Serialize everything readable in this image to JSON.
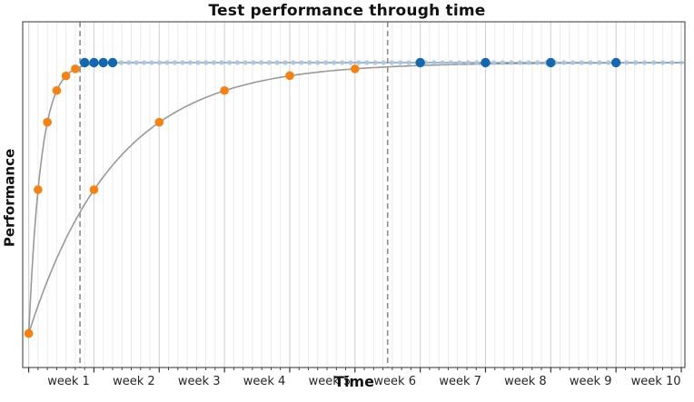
{
  "chart_data": {
    "type": "line",
    "title": "Test performance through time",
    "xlabel": "Time",
    "ylabel": "Performance",
    "x_unit": "weeks",
    "x_tick_labels": [
      "week 1",
      "week 2",
      "week 3",
      "week 4",
      "week 5",
      "week 6",
      "week 7",
      "week 8",
      "week 9",
      "week 10"
    ],
    "x_range_weeks": [
      -0.09,
      10.06
    ],
    "y_axis": {
      "tick_labels_shown": false,
      "start_value": 0.0,
      "asymptote_value": 1.0
    },
    "grid": {
      "minor_divisions_per_week": 7,
      "weeks_shown": 10,
      "minor_grid": true,
      "major_grid": true
    },
    "curves": [
      {
        "name": "fast-learner-curve",
        "model": "perf = 1 - exp(-t/tau)",
        "tau_weeks": 0.189
      },
      {
        "name": "slow-learner-curve",
        "model": "perf = 1 - exp(-t/tau)",
        "tau_weeks": 1.324
      }
    ],
    "series": [
      {
        "name": "fast-learning-tests",
        "marker": "orange-dot",
        "curve": 0,
        "x_weeks": [
          0,
          0.143,
          0.286,
          0.429,
          0.571,
          0.714
        ],
        "perf": [
          0,
          0.531,
          0.78,
          0.897,
          0.951,
          0.977
        ]
      },
      {
        "name": "slow-learning-tests",
        "marker": "orange-dot",
        "curve": 1,
        "x_weeks": [
          0,
          1,
          2,
          3,
          4,
          5
        ],
        "perf": [
          0,
          0.531,
          0.78,
          0.897,
          0.952,
          0.977
        ]
      },
      {
        "name": "fast-mastery-tests",
        "marker": "blue-dark-dot",
        "perf_const": 1.0,
        "x_weeks": [
          0.857,
          1.0,
          1.143,
          1.286
        ]
      },
      {
        "name": "slow-mastery-tests",
        "marker": "blue-dark-dot",
        "perf_const": 1.0,
        "x_weeks": [
          6,
          7,
          8,
          9
        ]
      },
      {
        "name": "scheduled-future-tests",
        "marker": "blue-light-dot",
        "perf_const": 1.0,
        "schedule": {
          "first_week": 1.418,
          "end_week": 10.1,
          "first_gap_days": 0.814,
          "last_gap_days": 0.989
        }
      }
    ],
    "criterion_vlines_weeks": [
      0.786,
      5.5
    ],
    "legend": {
      "shown": false
    },
    "colors": {
      "orange_dot": "#f8820d",
      "blue_dark_dot": "#1368b4",
      "blue_light_dot": "#a6c8e8",
      "curve_line": "#999999",
      "dashed_line": "#8c8c8c",
      "grid_minor": "#ebebeb",
      "grid_major": "#d6d6d6",
      "spine": "#555555",
      "tick_mark": "#333333",
      "text": "#1a1a1a",
      "background": "#ffffff"
    }
  }
}
